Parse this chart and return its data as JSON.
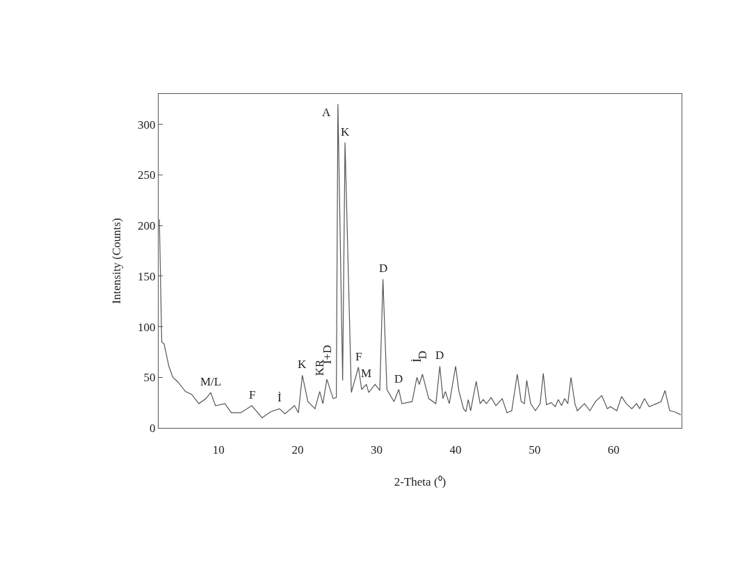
{
  "chart_data": {
    "type": "line",
    "xlabel": "2-Theta (⁰)",
    "ylabel": "Intensity (Counts)",
    "xlim": [
      2.4,
      68.6
    ],
    "xticks": [
      10,
      20,
      30,
      40,
      50,
      60
    ],
    "ylim": [
      0,
      330
    ],
    "yticks": [
      0,
      50,
      100,
      150,
      200,
      250,
      300
    ],
    "grid": false,
    "marker": "none",
    "line_style": "solid",
    "series": [
      {
        "color": "#555555",
        "x": [
          2.5,
          2.8,
          3.1,
          3.7,
          4.2,
          4.9,
          5.8,
          6.6,
          7.5,
          8.4,
          9.0,
          9.6,
          10.8,
          11.6,
          12.8,
          14.2,
          15.5,
          16.6,
          17.7,
          18.4,
          19.6,
          20.1,
          20.6,
          21.3,
          22.2,
          22.8,
          23.2,
          23.7,
          24.5,
          24.9,
          25.1,
          25.7,
          26.0,
          26.8,
          27.7,
          28.1,
          28.7,
          29.0,
          29.8,
          30.4,
          30.8,
          31.3,
          32.2,
          32.8,
          33.2,
          34.5,
          35.1,
          35.4,
          35.8,
          36.6,
          37.5,
          38.0,
          38.4,
          38.7,
          39.2,
          40.0,
          40.4,
          41.0,
          41.3,
          41.6,
          41.9,
          42.6,
          43.1,
          43.5,
          43.9,
          44.5,
          45.1,
          45.9,
          46.5,
          47.1,
          47.8,
          48.3,
          48.7,
          49.0,
          49.5,
          50.1,
          50.7,
          51.1,
          51.5,
          52.1,
          52.6,
          53.0,
          53.4,
          53.8,
          54.2,
          54.6,
          55.1,
          55.4,
          56.3,
          57.0,
          57.7,
          58.5,
          59.2,
          59.6,
          60.4,
          61.0,
          61.6,
          62.3,
          62.9,
          63.3,
          63.9,
          64.5,
          65.4,
          66.0,
          66.5,
          67.1,
          67.7,
          68.5
        ],
        "values": [
          206,
          85,
          83,
          61,
          50,
          45,
          36,
          33,
          24,
          29,
          35,
          22,
          24,
          15,
          15,
          22,
          10,
          16,
          19,
          14,
          22,
          15,
          52,
          26,
          19,
          36,
          24,
          48,
          29,
          30,
          320,
          47,
          282,
          35,
          60,
          38,
          43,
          35,
          43,
          37,
          147,
          38,
          26,
          38,
          24,
          26,
          50,
          43,
          53,
          29,
          24,
          61,
          29,
          36,
          24,
          61,
          37,
          19,
          16,
          28,
          17,
          46,
          24,
          28,
          24,
          30,
          22,
          29,
          15,
          17,
          53,
          26,
          24,
          47,
          24,
          17,
          24,
          54,
          23,
          25,
          21,
          28,
          22,
          29,
          24,
          50,
          24,
          17,
          24,
          17,
          26,
          32,
          19,
          21,
          17,
          31,
          24,
          19,
          24,
          19,
          29,
          21,
          24,
          26,
          37,
          17,
          16,
          13
        ]
      }
    ],
    "annotations": [
      {
        "text": "M/L",
        "x": 9.0,
        "y": 35
      },
      {
        "text": "F",
        "x": 14.2,
        "y": 22
      },
      {
        "text": "İ",
        "x": 17.7,
        "y": 19
      },
      {
        "text": "K",
        "x": 20.6,
        "y": 52
      },
      {
        "text": "KR",
        "x": 22.8,
        "y": 36
      },
      {
        "text": "İ+D",
        "x": 23.7,
        "y": 48
      },
      {
        "text": "A",
        "x": 25.1,
        "y": 320
      },
      {
        "text": "K",
        "x": 26.0,
        "y": 282
      },
      {
        "text": "F",
        "x": 27.7,
        "y": 60
      },
      {
        "text": "M",
        "x": 28.7,
        "y": 43
      },
      {
        "text": "D",
        "x": 30.8,
        "y": 147
      },
      {
        "text": "D",
        "x": 32.8,
        "y": 38
      },
      {
        "text": "İ",
        "x": 35.1,
        "y": 50
      },
      {
        "text": "D",
        "x": 35.8,
        "y": 53
      },
      {
        "text": "D",
        "x": 38.0,
        "y": 61
      }
    ]
  }
}
